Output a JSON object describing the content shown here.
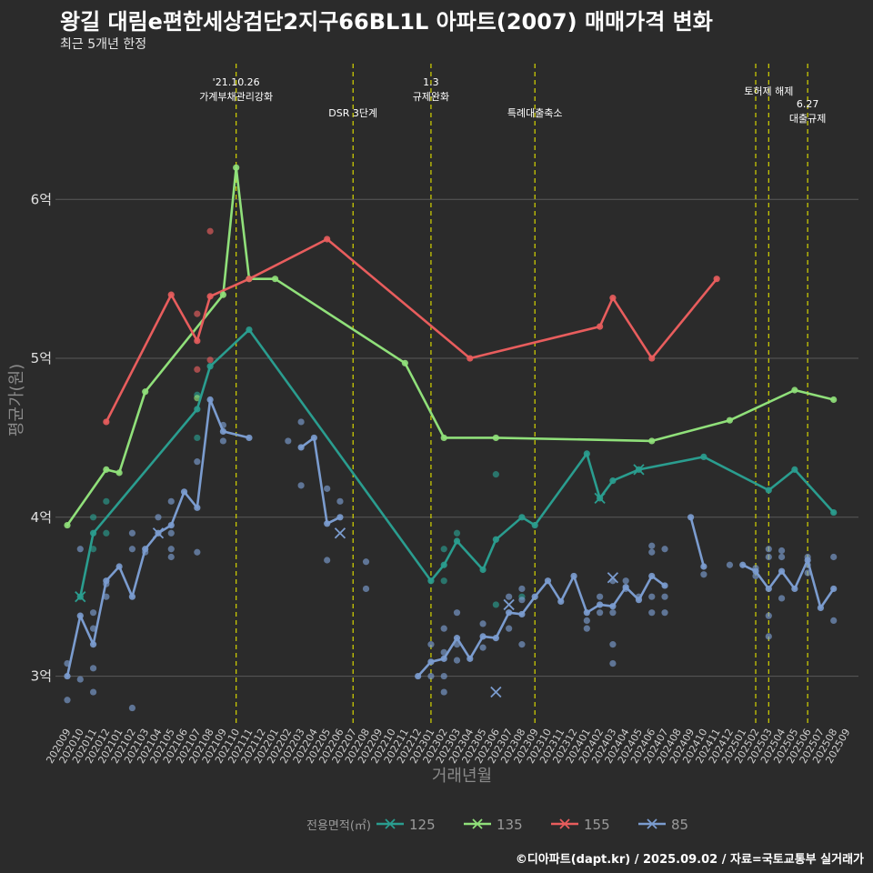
{
  "header": {
    "title": "왕길 대림e편한세상검단2지구66BL1L 아파트(2007) 매매가격 변화",
    "subtitle": "최근 5개년 한정"
  },
  "caption": "©디아파트(dapt.kr) / 2025.09.02 / 자료=국토교통부 실거래가",
  "colors": {
    "background": "#2b2b2b",
    "s125": "#2a9d8f",
    "s135": "#90e07a",
    "s155": "#e85d5d",
    "s85": "#7b9ccf",
    "event": "#d6d600"
  },
  "chart_data": {
    "type": "line",
    "xlabel": "거래년월",
    "ylabel": "평균가(원)",
    "ylim": [
      2.7,
      6.9
    ],
    "yticks": [
      3,
      4,
      5,
      6
    ],
    "ytick_labels": [
      "3억",
      "4억",
      "5억",
      "6억"
    ],
    "x_range": [
      "2020-09",
      "2025-09"
    ],
    "x_ticks": [
      "202009",
      "202010",
      "202011",
      "202012",
      "202101",
      "202102",
      "202103",
      "202104",
      "202105",
      "202106",
      "202107",
      "202108",
      "202109",
      "202110",
      "202111",
      "202112",
      "202201",
      "202202",
      "202203",
      "202204",
      "202205",
      "202206",
      "202207",
      "202208",
      "202209",
      "202210",
      "202211",
      "202212",
      "202301",
      "202302",
      "202303",
      "202304",
      "202305",
      "202306",
      "202307",
      "202308",
      "202309",
      "202310",
      "202311",
      "202312",
      "202401",
      "202402",
      "202403",
      "202404",
      "202405",
      "202406",
      "202407",
      "202408",
      "202409",
      "202410",
      "202411",
      "202412",
      "202501",
      "202502",
      "202503",
      "202504",
      "202505",
      "202506",
      "202507",
      "202508",
      "202509"
    ],
    "legend": {
      "title": "전용면적(㎡)",
      "position": "bottom"
    },
    "events": [
      {
        "x": "2021-10",
        "lines": [
          "'21.10.26",
          "가계부채관리강화"
        ],
        "row": 0
      },
      {
        "x": "2022-07",
        "lines": [
          "DSR 3단계"
        ],
        "row": 1
      },
      {
        "x": "2023-01",
        "lines": [
          "1.3",
          "규제완화"
        ],
        "row": 0
      },
      {
        "x": "2023-09",
        "lines": [
          "특례대출축소"
        ],
        "row": 1
      },
      {
        "x": "2025-02",
        "lines": [],
        "row": 0
      },
      {
        "x": "2025-03",
        "lines": [
          "토허제 해제"
        ],
        "row": 0
      },
      {
        "x": "2025-06",
        "lines": [
          "6.27",
          "대출규제"
        ],
        "row": 1
      }
    ],
    "series": [
      {
        "name": "125",
        "color": "#2a9d8f",
        "line": [
          [
            "2020-10",
            3.5
          ],
          [
            "2020-11",
            3.9
          ],
          [
            "2021-07",
            4.68
          ],
          [
            "2021-08",
            4.95
          ],
          [
            "2021-11",
            5.18
          ],
          [
            "2023-01",
            3.6
          ],
          [
            "2023-02",
            3.7
          ],
          [
            "2023-03",
            3.85
          ],
          [
            "2023-05",
            3.67
          ],
          [
            "2023-06",
            3.86
          ],
          [
            "2023-08",
            4.0
          ],
          [
            "2023-09",
            3.95
          ],
          [
            "2024-01",
            4.4
          ],
          [
            "2024-02",
            4.12
          ],
          [
            "2024-03",
            4.23
          ],
          [
            "2024-05",
            4.3
          ],
          [
            "2024-10",
            4.38
          ],
          [
            "2025-03",
            4.17
          ],
          [
            "2025-05",
            4.3
          ],
          [
            "2025-08",
            4.03
          ]
        ],
        "points": [
          [
            "2020-11",
            4.0
          ],
          [
            "2020-12",
            4.1
          ],
          [
            "2020-12",
            3.9
          ],
          [
            "2020-11",
            3.8
          ],
          [
            "2021-07",
            4.77
          ],
          [
            "2021-07",
            4.5
          ],
          [
            "2023-03",
            3.9
          ],
          [
            "2023-02",
            3.6
          ],
          [
            "2023-02",
            3.8
          ],
          [
            "2023-06",
            4.27
          ],
          [
            "2023-06",
            3.45
          ],
          [
            "2023-08",
            3.5
          ]
        ],
        "crosses": [
          [
            "2020-10",
            3.5
          ],
          [
            "2024-02",
            4.12
          ],
          [
            "2024-05",
            4.3
          ]
        ]
      },
      {
        "name": "135",
        "color": "#90e07a",
        "line": [
          [
            "2020-09",
            3.95
          ],
          [
            "2020-12",
            4.3
          ],
          [
            "2021-01",
            4.28
          ],
          [
            "2021-03",
            4.79
          ],
          [
            "2021-09",
            5.4
          ],
          [
            "2021-10",
            6.2
          ],
          [
            "2021-11",
            5.5
          ],
          [
            "2022-01",
            5.5
          ],
          [
            "2022-11",
            4.97
          ],
          [
            "2023-02",
            4.5
          ],
          [
            "2023-06",
            4.5
          ],
          [
            "2024-06",
            4.48
          ],
          [
            "2024-12",
            4.61
          ],
          [
            "2025-05",
            4.8
          ],
          [
            "2025-08",
            4.74
          ]
        ],
        "points": [
          [
            "2021-07",
            4.75
          ]
        ],
        "crosses": []
      },
      {
        "name": "155",
        "color": "#e85d5d",
        "line_segments": [
          [
            [
              "2020-12",
              4.6
            ],
            [
              "2021-05",
              5.4
            ],
            [
              "2021-07",
              5.11
            ],
            [
              "2021-08",
              5.39
            ],
            [
              "2021-11",
              5.5
            ],
            [
              "2022-05",
              5.75
            ],
            [
              "2023-04",
              5.0
            ],
            [
              "2024-02",
              5.2
            ],
            [
              "2024-03",
              5.38
            ],
            [
              "2024-06",
              5.0
            ],
            [
              "2024-11",
              5.5
            ]
          ]
        ],
        "points": [
          [
            "2021-08",
            5.8
          ],
          [
            "2021-07",
            5.28
          ],
          [
            "2021-07",
            4.93
          ],
          [
            "2021-08",
            4.99
          ]
        ],
        "crosses": []
      },
      {
        "name": "85",
        "color": "#7b9ccf",
        "line_segments": [
          [
            [
              "2020-09",
              3.0
            ],
            [
              "2020-10",
              3.38
            ],
            [
              "2020-11",
              3.2
            ],
            [
              "2020-12",
              3.6
            ],
            [
              "2021-01",
              3.69
            ],
            [
              "2021-02",
              3.5
            ],
            [
              "2021-03",
              3.8
            ],
            [
              "2021-04",
              3.9
            ],
            [
              "2021-05",
              3.95
            ],
            [
              "2021-06",
              4.16
            ],
            [
              "2021-07",
              4.06
            ],
            [
              "2021-08",
              4.74
            ],
            [
              "2021-09",
              4.54
            ],
            [
              "2021-11",
              4.5
            ]
          ],
          [
            [
              "2022-03",
              4.44
            ],
            [
              "2022-04",
              4.5
            ],
            [
              "2022-05",
              3.96
            ],
            [
              "2022-06",
              4.0
            ]
          ],
          [
            [
              "2022-12",
              3.0
            ],
            [
              "2023-01",
              3.09
            ],
            [
              "2023-02",
              3.11
            ],
            [
              "2023-03",
              3.24
            ],
            [
              "2023-04",
              3.11
            ],
            [
              "2023-05",
              3.25
            ],
            [
              "2023-06",
              3.24
            ],
            [
              "2023-07",
              3.4
            ],
            [
              "2023-08",
              3.39
            ],
            [
              "2023-09",
              3.5
            ],
            [
              "2023-10",
              3.6
            ],
            [
              "2023-11",
              3.47
            ],
            [
              "2023-12",
              3.63
            ],
            [
              "2024-01",
              3.4
            ],
            [
              "2024-02",
              3.45
            ],
            [
              "2024-03",
              3.44
            ],
            [
              "2024-04",
              3.56
            ],
            [
              "2024-05",
              3.48
            ],
            [
              "2024-06",
              3.63
            ],
            [
              "2024-07",
              3.57
            ]
          ],
          [
            [
              "2024-09",
              4.0
            ],
            [
              "2024-10",
              3.69
            ]
          ],
          [
            [
              "2025-01",
              3.7
            ],
            [
              "2025-02",
              3.66
            ],
            [
              "2025-03",
              3.55
            ],
            [
              "2025-04",
              3.66
            ],
            [
              "2025-05",
              3.55
            ],
            [
              "2025-06",
              3.73
            ],
            [
              "2025-07",
              3.43
            ],
            [
              "2025-08",
              3.55
            ]
          ]
        ],
        "points": [
          [
            "2020-09",
            3.08
          ],
          [
            "2020-09",
            2.85
          ],
          [
            "2020-10",
            3.8
          ],
          [
            "2020-10",
            2.98
          ],
          [
            "2020-11",
            3.4
          ],
          [
            "2020-11",
            3.3
          ],
          [
            "2020-11",
            3.05
          ],
          [
            "2020-11",
            2.9
          ],
          [
            "2020-12",
            3.5
          ],
          [
            "2020-12",
            3.58
          ],
          [
            "2021-02",
            2.8
          ],
          [
            "2021-02",
            3.9
          ],
          [
            "2021-02",
            3.8
          ],
          [
            "2021-03",
            3.78
          ],
          [
            "2021-04",
            4.0
          ],
          [
            "2021-05",
            4.1
          ],
          [
            "2021-05",
            3.9
          ],
          [
            "2021-05",
            3.8
          ],
          [
            "2021-05",
            3.75
          ],
          [
            "2021-07",
            3.78
          ],
          [
            "2021-07",
            4.35
          ],
          [
            "2021-09",
            4.58
          ],
          [
            "2021-09",
            4.48
          ],
          [
            "2022-02",
            4.48
          ],
          [
            "2022-03",
            4.6
          ],
          [
            "2022-03",
            4.2
          ],
          [
            "2022-05",
            4.18
          ],
          [
            "2022-05",
            3.73
          ],
          [
            "2022-06",
            4.1
          ],
          [
            "2022-08",
            3.72
          ],
          [
            "2022-08",
            3.55
          ],
          [
            "2023-01",
            3.0
          ],
          [
            "2023-01",
            3.2
          ],
          [
            "2023-02",
            3.3
          ],
          [
            "2023-02",
            2.9
          ],
          [
            "2023-02",
            3.0
          ],
          [
            "2023-02",
            3.15
          ],
          [
            "2023-03",
            3.4
          ],
          [
            "2023-03",
            3.1
          ],
          [
            "2023-03",
            3.2
          ],
          [
            "2023-05",
            3.33
          ],
          [
            "2023-05",
            3.18
          ],
          [
            "2023-07",
            3.5
          ],
          [
            "2023-07",
            3.3
          ],
          [
            "2023-08",
            3.55
          ],
          [
            "2023-08",
            3.2
          ],
          [
            "2023-08",
            3.48
          ],
          [
            "2024-01",
            3.3
          ],
          [
            "2024-01",
            3.35
          ],
          [
            "2024-02",
            3.5
          ],
          [
            "2024-02",
            3.4
          ],
          [
            "2024-03",
            3.6
          ],
          [
            "2024-03",
            3.4
          ],
          [
            "2024-03",
            3.2
          ],
          [
            "2024-03",
            3.08
          ],
          [
            "2024-04",
            3.6
          ],
          [
            "2024-04",
            3.55
          ],
          [
            "2024-05",
            3.5
          ],
          [
            "2024-06",
            3.82
          ],
          [
            "2024-06",
            3.78
          ],
          [
            "2024-06",
            3.5
          ],
          [
            "2024-06",
            3.4
          ],
          [
            "2024-07",
            3.8
          ],
          [
            "2024-07",
            3.5
          ],
          [
            "2024-07",
            3.4
          ],
          [
            "2024-10",
            3.64
          ],
          [
            "2024-12",
            3.7
          ],
          [
            "2025-02",
            3.68
          ],
          [
            "2025-02",
            3.63
          ],
          [
            "2025-03",
            3.8
          ],
          [
            "2025-03",
            3.75
          ],
          [
            "2025-03",
            3.38
          ],
          [
            "2025-03",
            3.25
          ],
          [
            "2025-04",
            3.79
          ],
          [
            "2025-04",
            3.75
          ],
          [
            "2025-04",
            3.49
          ],
          [
            "2025-06",
            3.75
          ],
          [
            "2025-06",
            3.7
          ],
          [
            "2025-06",
            3.65
          ],
          [
            "2025-08",
            3.75
          ],
          [
            "2025-08",
            3.35
          ]
        ],
        "crosses": [
          [
            "2021-04",
            3.9
          ],
          [
            "2022-06",
            3.9
          ],
          [
            "2023-06",
            2.9
          ],
          [
            "2023-07",
            3.45
          ],
          [
            "2024-03",
            3.62
          ]
        ]
      }
    ]
  }
}
